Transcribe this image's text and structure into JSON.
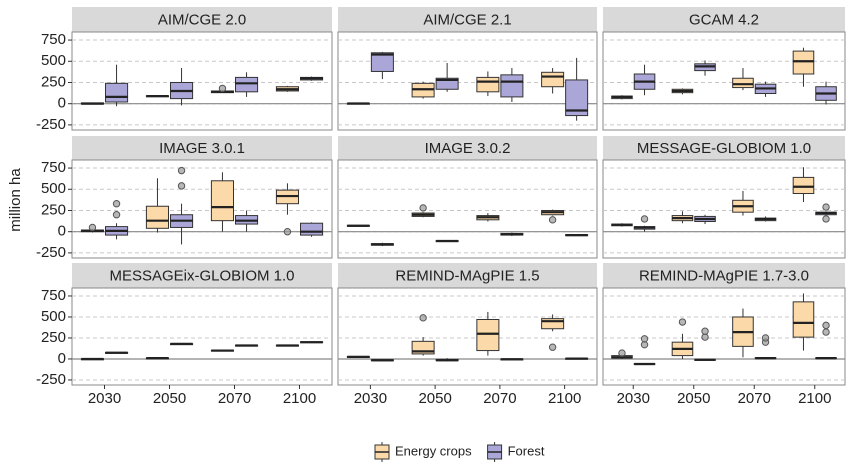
{
  "chart_data": {
    "type": "box",
    "ylabel": "million ha",
    "categories": [
      "2030",
      "2050",
      "2070",
      "2100"
    ],
    "ylim": [
      -310,
      845
    ],
    "yticks": [
      -250,
      0,
      250,
      500,
      750
    ],
    "grid": true,
    "reference_line": 0,
    "legend_position": "bottom",
    "series": [
      {
        "name": "Energy crops",
        "color": "#fcd9a8"
      },
      {
        "name": "Forest",
        "color": "#aaa7d8"
      }
    ],
    "panels": [
      {
        "title": "AIM/CGE 2.0",
        "data": [
          [
            {
              "min": -10,
              "q1": -5,
              "median": 0,
              "q3": 10,
              "max": 15
            },
            {
              "min": 80,
              "q1": 82,
              "median": 90,
              "q3": 93,
              "max": 95
            },
            {
              "min": 130,
              "q1": 130,
              "median": 140,
              "q3": 150,
              "max": 160,
              "outliers": [
                180
              ]
            },
            {
              "min": 140,
              "q1": 150,
              "median": 170,
              "q3": 200,
              "max": 210
            }
          ],
          [
            {
              "min": -30,
              "q1": 20,
              "median": 80,
              "q3": 240,
              "max": 460
            },
            {
              "min": -20,
              "q1": 60,
              "median": 150,
              "q3": 250,
              "max": 420
            },
            {
              "min": 80,
              "q1": 140,
              "median": 240,
              "q3": 310,
              "max": 370
            },
            {
              "min": 270,
              "q1": 280,
              "median": 300,
              "q3": 310,
              "max": 320
            }
          ]
        ]
      },
      {
        "title": "AIM/CGE 2.1",
        "data": [
          [
            {
              "min": -2,
              "q1": 0,
              "median": 3,
              "q3": 5,
              "max": 8
            },
            {
              "min": 60,
              "q1": 80,
              "median": 170,
              "q3": 240,
              "max": 260
            },
            {
              "min": 90,
              "q1": 140,
              "median": 260,
              "q3": 310,
              "max": 380
            },
            {
              "min": 120,
              "q1": 200,
              "median": 320,
              "q3": 370,
              "max": 420
            }
          ],
          [
            {
              "min": 290,
              "q1": 380,
              "median": 580,
              "q3": 600,
              "max": 610
            },
            {
              "min": 140,
              "q1": 170,
              "median": 280,
              "q3": 300,
              "max": 480
            },
            {
              "min": 20,
              "q1": 80,
              "median": 260,
              "q3": 340,
              "max": 420
            },
            {
              "min": -200,
              "q1": -140,
              "median": -80,
              "q3": 280,
              "max": 540
            }
          ]
        ]
      },
      {
        "title": "GCAM 4.2",
        "data": [
          [
            {
              "min": 50,
              "q1": 60,
              "median": 80,
              "q3": 90,
              "max": 100
            },
            {
              "min": 110,
              "q1": 130,
              "median": 150,
              "q3": 170,
              "max": 180
            },
            {
              "min": 160,
              "q1": 190,
              "median": 230,
              "q3": 300,
              "max": 420
            },
            {
              "min": 200,
              "q1": 350,
              "median": 500,
              "q3": 620,
              "max": 660
            }
          ],
          [
            {
              "min": 100,
              "q1": 170,
              "median": 260,
              "q3": 350,
              "max": 460
            },
            {
              "min": 330,
              "q1": 390,
              "median": 440,
              "q3": 470,
              "max": 510
            },
            {
              "min": 80,
              "q1": 120,
              "median": 180,
              "q3": 230,
              "max": 260
            },
            {
              "min": -10,
              "q1": 40,
              "median": 120,
              "q3": 200,
              "max": 260
            }
          ]
        ]
      },
      {
        "title": "IMAGE 3.0.1",
        "data": [
          [
            {
              "min": -10,
              "q1": 0,
              "median": 10,
              "q3": 20,
              "max": 30,
              "outliers": [
                50
              ]
            },
            {
              "min": -10,
              "q1": 40,
              "median": 130,
              "q3": 300,
              "max": 630
            },
            {
              "min": 0,
              "q1": 130,
              "median": 290,
              "q3": 600,
              "max": 700
            },
            {
              "min": 200,
              "q1": 330,
              "median": 420,
              "q3": 490,
              "max": 570,
              "outliers": [
                0
              ]
            }
          ],
          [
            {
              "min": -90,
              "q1": -40,
              "median": 10,
              "q3": 60,
              "max": 100,
              "outliers": [
                200,
                330
              ]
            },
            {
              "min": -150,
              "q1": 50,
              "median": 130,
              "q3": 200,
              "max": 330,
              "outliers": [
                540,
                720
              ]
            },
            {
              "min": 0,
              "q1": 90,
              "median": 130,
              "q3": 190,
              "max": 250
            },
            {
              "min": -60,
              "q1": -40,
              "median": 0,
              "q3": 100,
              "max": 110
            }
          ]
        ]
      },
      {
        "title": "IMAGE 3.0.2",
        "data": [
          [
            {
              "min": 60,
              "q1": 65,
              "median": 70,
              "q3": 75,
              "max": 80
            },
            {
              "min": 170,
              "q1": 180,
              "median": 200,
              "q3": 220,
              "max": 230,
              "outliers": [
                280
              ]
            },
            {
              "min": 120,
              "q1": 140,
              "median": 170,
              "q3": 190,
              "max": 220
            },
            {
              "min": 190,
              "q1": 200,
              "median": 230,
              "q3": 250,
              "max": 260,
              "outliers": [
                140
              ]
            }
          ],
          [
            {
              "min": -170,
              "q1": -160,
              "median": -150,
              "q3": -140,
              "max": -130
            },
            {
              "min": -120,
              "q1": -115,
              "median": -110,
              "q3": -105,
              "max": -100
            },
            {
              "min": -50,
              "q1": -40,
              "median": -30,
              "q3": -20,
              "max": -10
            },
            {
              "min": -50,
              "q1": -45,
              "median": -40,
              "q3": -35,
              "max": -30
            }
          ]
        ]
      },
      {
        "title": "MESSAGE-GLOBIOM 1.0",
        "data": [
          [
            {
              "min": 60,
              "q1": 70,
              "median": 80,
              "q3": 90,
              "max": 100
            },
            {
              "min": 100,
              "q1": 130,
              "median": 160,
              "q3": 190,
              "max": 240
            },
            {
              "min": 190,
              "q1": 230,
              "median": 300,
              "q3": 370,
              "max": 480
            },
            {
              "min": 350,
              "q1": 450,
              "median": 530,
              "q3": 640,
              "max": 760
            }
          ],
          [
            {
              "min": 0,
              "q1": 30,
              "median": 50,
              "q3": 60,
              "max": 70,
              "outliers": [
                150
              ]
            },
            {
              "min": 90,
              "q1": 120,
              "median": 150,
              "q3": 180,
              "max": 200
            },
            {
              "min": 120,
              "q1": 130,
              "median": 150,
              "q3": 160,
              "max": 180
            },
            {
              "min": 190,
              "q1": 200,
              "median": 220,
              "q3": 230,
              "max": 240,
              "outliers": [
                150,
                290
              ]
            }
          ]
        ]
      },
      {
        "title": "MESSAGEix-GLOBIOM 1.0",
        "data": [
          [
            {
              "min": -5,
              "q1": -2,
              "median": 0,
              "q3": 2,
              "max": 5
            },
            {
              "min": 5,
              "q1": 7,
              "median": 10,
              "q3": 12,
              "max": 15
            },
            {
              "min": 90,
              "q1": 95,
              "median": 100,
              "q3": 105,
              "max": 110
            },
            {
              "min": 150,
              "q1": 155,
              "median": 160,
              "q3": 165,
              "max": 170
            }
          ],
          [
            {
              "min": 70,
              "q1": 72,
              "median": 75,
              "q3": 78,
              "max": 80
            },
            {
              "min": 175,
              "q1": 178,
              "median": 180,
              "q3": 182,
              "max": 185
            },
            {
              "min": 150,
              "q1": 155,
              "median": 160,
              "q3": 165,
              "max": 170
            },
            {
              "min": 190,
              "q1": 195,
              "median": 200,
              "q3": 205,
              "max": 210
            }
          ]
        ]
      },
      {
        "title": "REMIND-MAgPIE 1.5",
        "data": [
          [
            {
              "min": 15,
              "q1": 20,
              "median": 25,
              "q3": 30,
              "max": 35
            },
            {
              "min": 40,
              "q1": 60,
              "median": 90,
              "q3": 210,
              "max": 260,
              "outliers": [
                490
              ]
            },
            {
              "min": 40,
              "q1": 100,
              "median": 300,
              "q3": 470,
              "max": 560
            },
            {
              "min": 330,
              "q1": 360,
              "median": 450,
              "q3": 480,
              "max": 530,
              "outliers": [
                140
              ]
            }
          ],
          [
            {
              "min": -30,
              "q1": -20,
              "median": -15,
              "q3": -10,
              "max": 0
            },
            {
              "min": -30,
              "q1": -20,
              "median": -15,
              "q3": -5,
              "max": 10
            },
            {
              "min": -10,
              "q1": -5,
              "median": -3,
              "q3": 0,
              "max": 5
            },
            {
              "min": 0,
              "q1": 2,
              "median": 5,
              "q3": 8,
              "max": 10
            }
          ]
        ]
      },
      {
        "title": "REMIND-MAgPIE 1.7-3.0",
        "data": [
          [
            {
              "min": 0,
              "q1": 10,
              "median": 20,
              "q3": 40,
              "max": 50,
              "outliers": [
                70
              ]
            },
            {
              "min": 0,
              "q1": 40,
              "median": 120,
              "q3": 200,
              "max": 300,
              "outliers": [
                440
              ]
            },
            {
              "min": 20,
              "q1": 150,
              "median": 320,
              "q3": 500,
              "max": 600
            },
            {
              "min": 100,
              "q1": 260,
              "median": 430,
              "q3": 680,
              "max": 780
            }
          ],
          [
            {
              "min": -70,
              "q1": -65,
              "median": -60,
              "q3": -55,
              "max": -50,
              "outliers": [
                170,
                240
              ]
            },
            {
              "min": -20,
              "q1": -15,
              "median": -10,
              "q3": -5,
              "max": 0,
              "outliers": [
                260,
                330
              ]
            },
            {
              "min": 0,
              "q1": 5,
              "median": 10,
              "q3": 15,
              "max": 20,
              "outliers": [
                200,
                250
              ]
            },
            {
              "min": 0,
              "q1": 5,
              "median": 10,
              "q3": 15,
              "max": 20,
              "outliers": [
                320,
                400
              ]
            }
          ]
        ]
      }
    ]
  }
}
